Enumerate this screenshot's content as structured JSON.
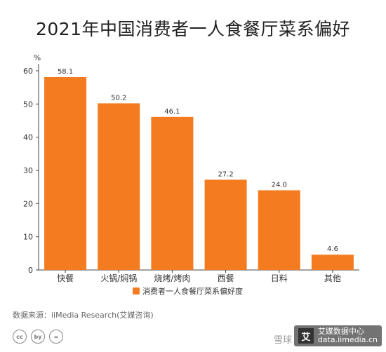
{
  "chart_data": {
    "type": "bar",
    "title": "2021年中国消费者一人食餐厅菜系偏好",
    "ylabel": "%",
    "ylim": [
      0,
      60
    ],
    "yticks": [
      0,
      10,
      20,
      30,
      40,
      50,
      60
    ],
    "categories": [
      "快餐",
      "火锅/焖锅",
      "烧烤/烤肉",
      "西餐",
      "日料",
      "其他"
    ],
    "series": [
      {
        "name": "消费者一人食餐厅菜系偏好度",
        "values": [
          58.1,
          50.2,
          46.1,
          27.2,
          24.0,
          4.6
        ],
        "color": "#F47B20"
      }
    ],
    "data_labels": [
      "58.1",
      "50.2",
      "46.1",
      "27.2",
      "24.0",
      "4.6"
    ],
    "grid": false,
    "legend": "bottom-center"
  },
  "source": "数据来源：iiMedia Research(艾媒咨询)",
  "watermark": {
    "logo": "艾",
    "text": "艾媒数据中心",
    "site": "data.iimedia.cn"
  },
  "xueqiu": "雪球",
  "license": [
    "cc",
    "by",
    "="
  ]
}
